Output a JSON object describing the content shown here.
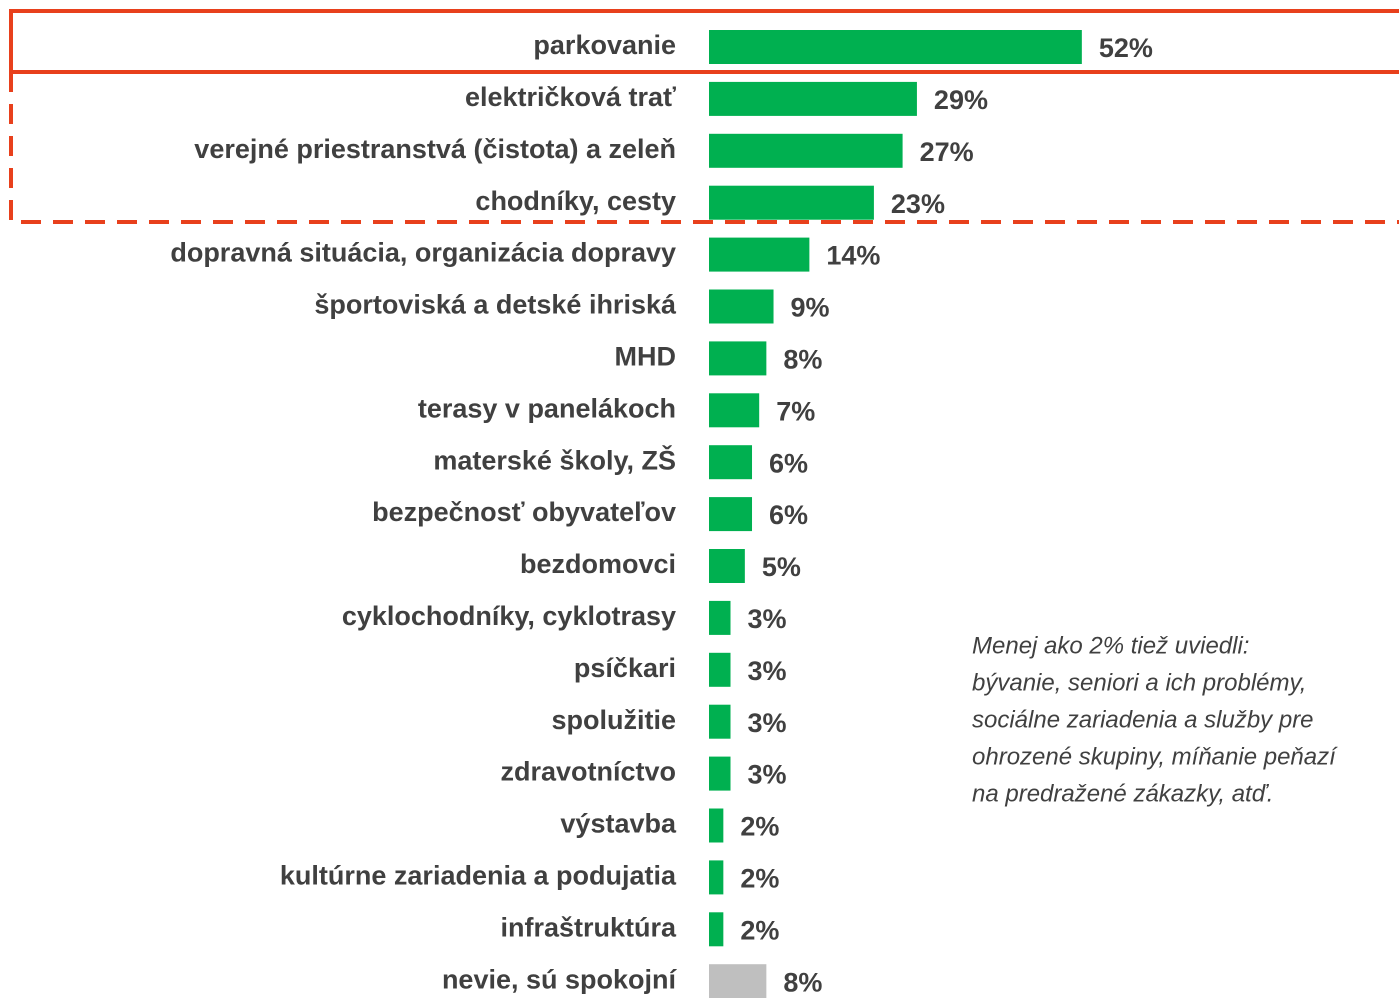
{
  "chart_data": {
    "type": "bar",
    "orientation": "horizontal",
    "categories": [
      "parkovanie",
      "električková trať",
      "verejné priestranstvá (čistota) a zeleň",
      "chodníky, cesty",
      "dopravná situácia, organizácia dopravy",
      "športoviská a detské ihriská",
      "MHD",
      "terasy v panelákoch",
      "materské školy, ZŠ",
      "bezpečnosť obyvateľov",
      "bezdomovci",
      "cyklochodníky, cyklotrasy",
      "psíčkari",
      "spolužitie",
      "zdravotníctvo",
      "výstavba",
      "kultúrne zariadenia a podujatia",
      "infraštruktúra",
      "nevie, sú spokojní"
    ],
    "values": [
      52,
      29,
      27,
      23,
      14,
      9,
      8,
      7,
      6,
      6,
      5,
      3,
      3,
      3,
      3,
      2,
      2,
      2,
      8
    ],
    "value_labels": [
      "52%",
      "29%",
      "27%",
      "23%",
      "14%",
      "9%",
      "8%",
      "7%",
      "6%",
      "6%",
      "5%",
      "3%",
      "3%",
      "3%",
      "3%",
      "2%",
      "2%",
      "2%",
      "8%"
    ],
    "colors": [
      "#00b050",
      "#00b050",
      "#00b050",
      "#00b050",
      "#00b050",
      "#00b050",
      "#00b050",
      "#00b050",
      "#00b050",
      "#00b050",
      "#00b050",
      "#00b050",
      "#00b050",
      "#00b050",
      "#00b050",
      "#00b050",
      "#00b050",
      "#00b050",
      "#bfbfbf"
    ],
    "annotation": [
      "Menej ako 2% tiež uviedli:",
      "bývanie, seniori a ich problémy,",
      "sociálne zariadenia a služby pre",
      "ohrozené skupiny, míňanie peňazí",
      "na predražené zákazky, atď."
    ]
  }
}
